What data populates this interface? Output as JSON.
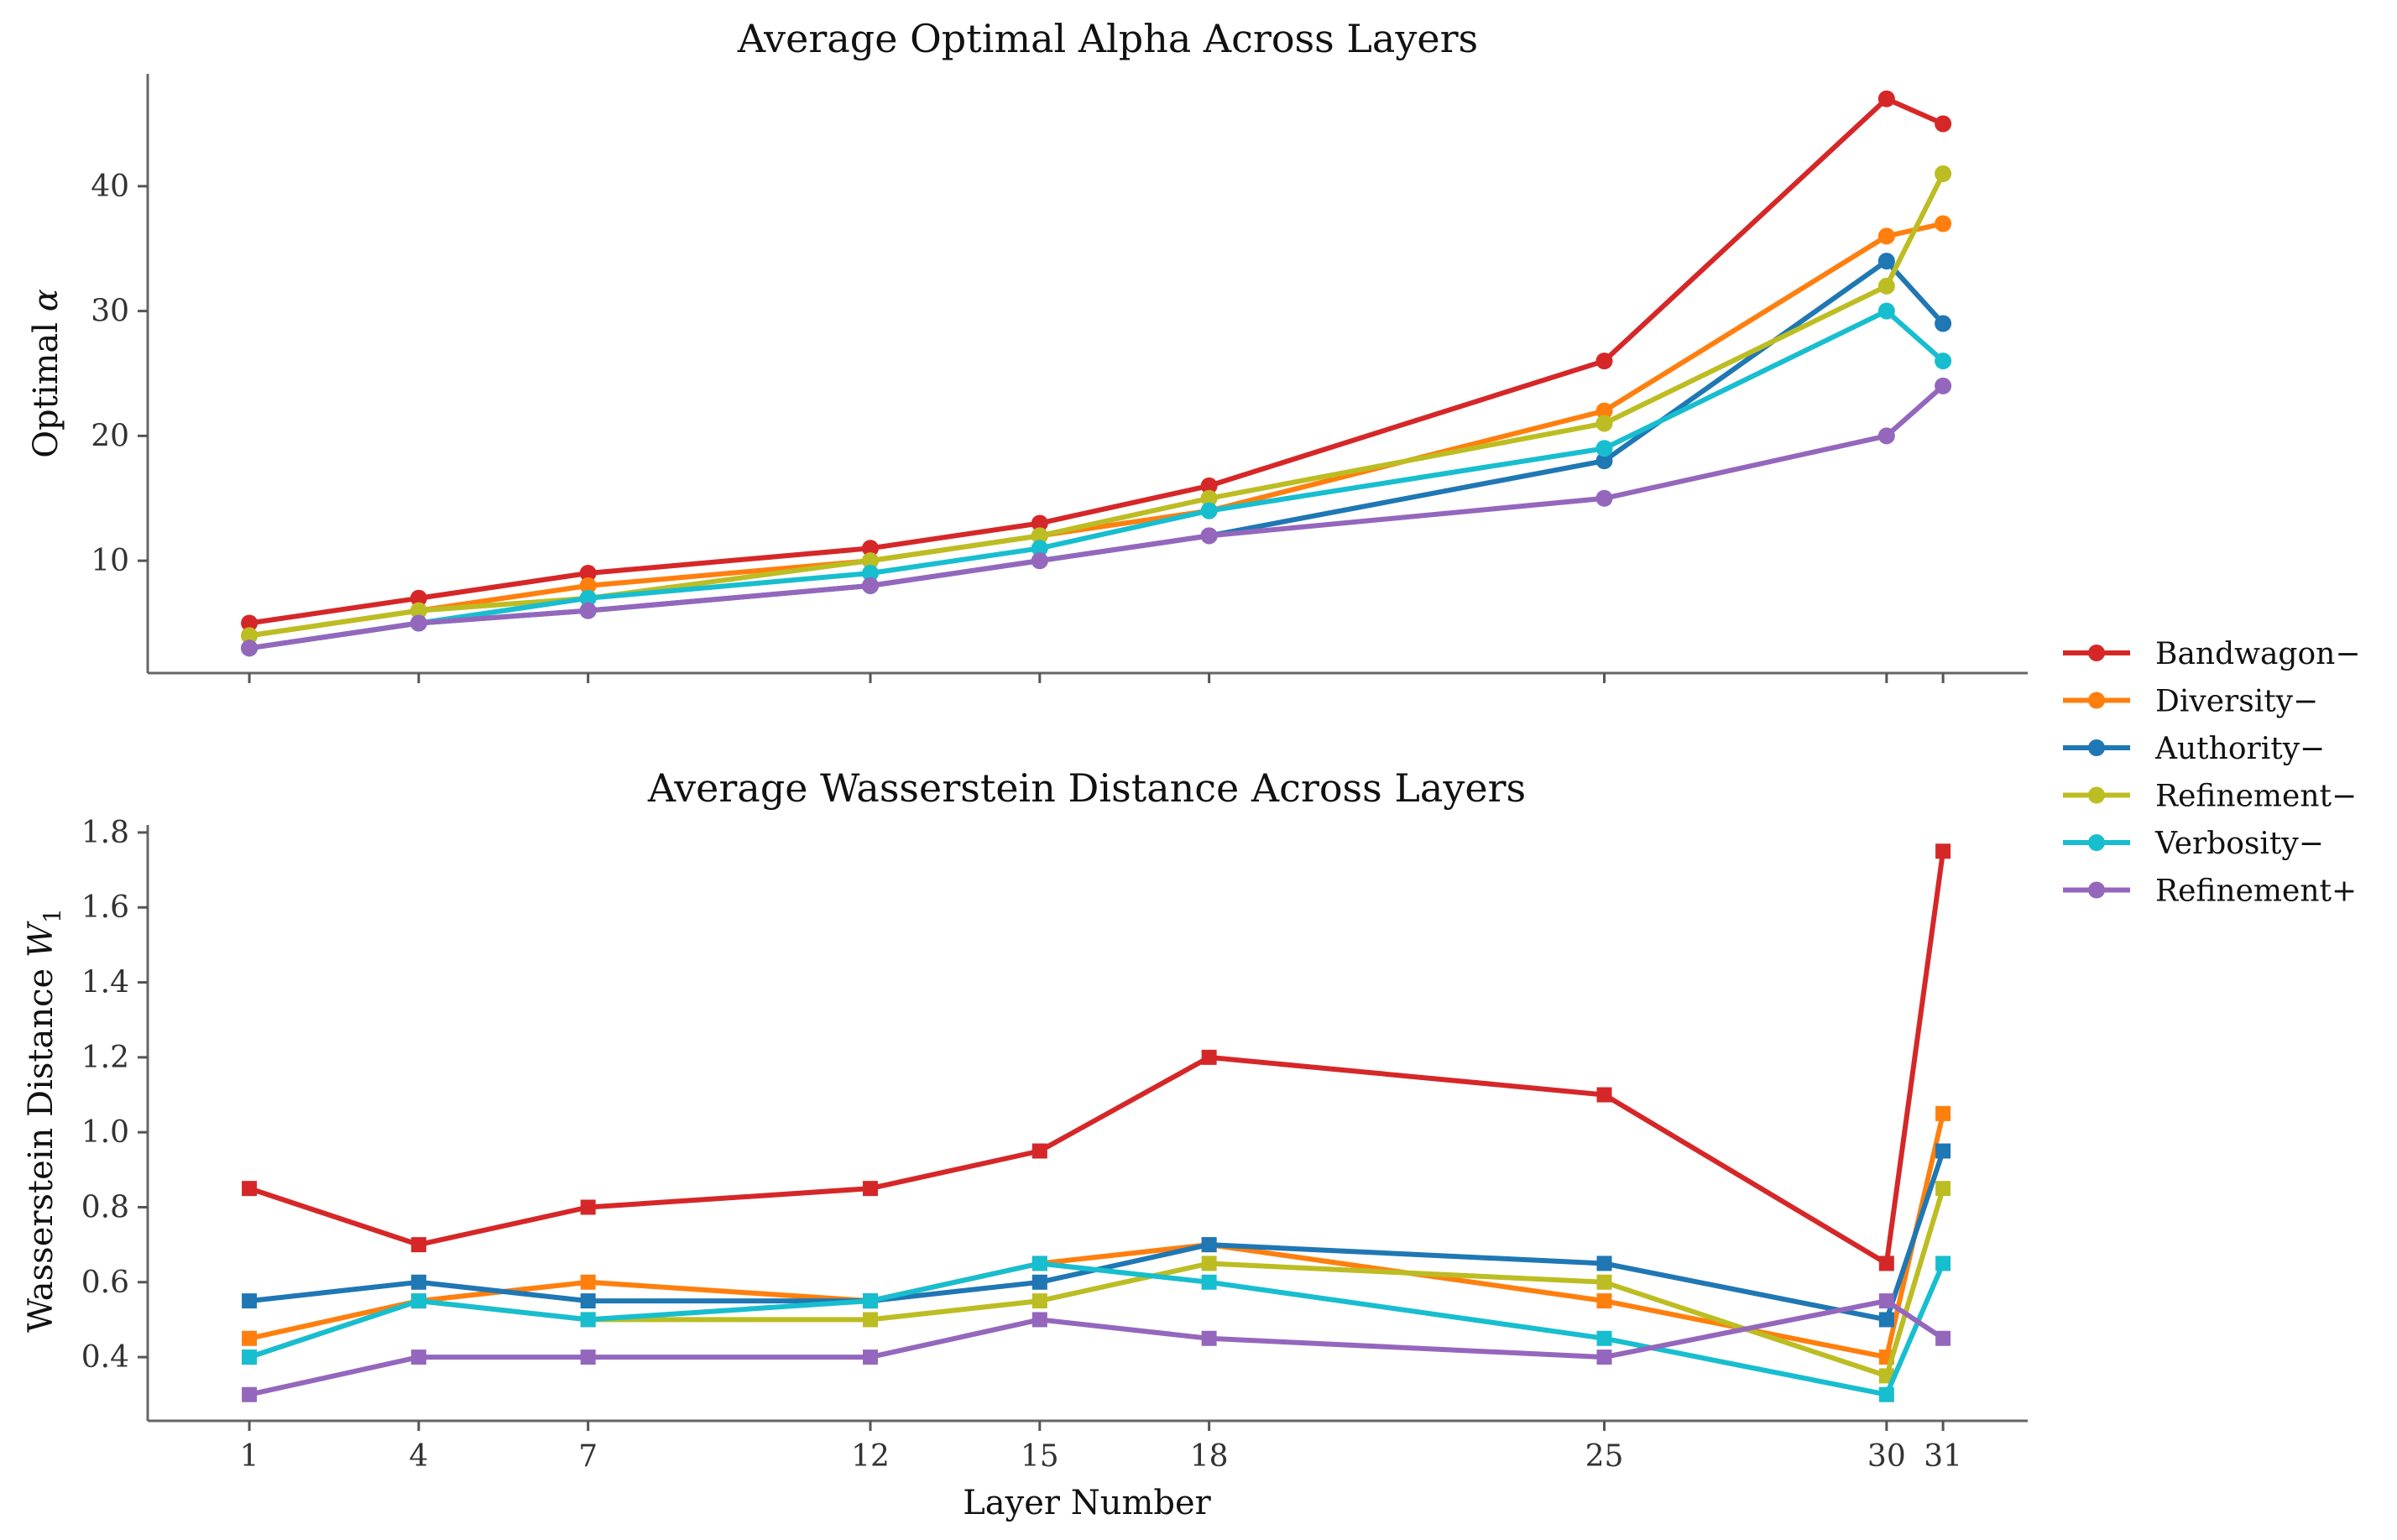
{
  "chart_data": [
    {
      "type": "line",
      "title": "Average Optimal Alpha Across Layers",
      "xlabel": "",
      "ylabel_text": "Optimal ",
      "ylabel_math": "α",
      "x": [
        1,
        4,
        7,
        12,
        15,
        18,
        25,
        30,
        31
      ],
      "xlim": [
        -0.8,
        32.5
      ],
      "ylim": [
        1,
        49
      ],
      "yticks": [
        10,
        20,
        30,
        40
      ],
      "ytick_labels": [
        "10",
        "20",
        "30",
        "40"
      ],
      "xtick_labels_visible": false,
      "marker": "circle",
      "grid": false,
      "series": [
        {
          "name": "Bandwagon−",
          "color": "#d62728",
          "values": [
            5,
            7,
            9,
            11,
            13,
            16,
            26,
            47,
            45
          ]
        },
        {
          "name": "Diversity−",
          "color": "#ff7f0e",
          "values": [
            4,
            6,
            8,
            10,
            12,
            14,
            22,
            36,
            37
          ]
        },
        {
          "name": "Authority−",
          "color": "#1f77b4",
          "values": [
            3,
            5,
            6,
            8,
            10,
            12,
            18,
            34,
            29
          ]
        },
        {
          "name": "Refinement−",
          "color": "#bcbd22",
          "values": [
            4,
            6,
            7,
            10,
            12,
            15,
            21,
            32,
            41
          ]
        },
        {
          "name": "Verbosity−",
          "color": "#17becf",
          "values": [
            3,
            5,
            7,
            9,
            11,
            14,
            19,
            30,
            26
          ]
        },
        {
          "name": "Refinement+",
          "color": "#9467bd",
          "values": [
            3,
            5,
            6,
            8,
            10,
            12,
            15,
            20,
            24
          ]
        }
      ]
    },
    {
      "type": "line",
      "title": "Average Wasserstein Distance Across Layers",
      "xlabel": "Layer Number",
      "ylabel_text": "Wasserstein Distance ",
      "ylabel_math": "W",
      "ylabel_sub": "1",
      "x": [
        1,
        4,
        7,
        12,
        15,
        18,
        25,
        30,
        31
      ],
      "xlim": [
        -0.8,
        32.5
      ],
      "ylim": [
        0.23,
        1.82
      ],
      "yticks": [
        0.4,
        0.6,
        0.8,
        1.0,
        1.2,
        1.4,
        1.6,
        1.8
      ],
      "ytick_labels": [
        "0.4",
        "0.6",
        "0.8",
        "1.0",
        "1.2",
        "1.4",
        "1.6",
        "1.8"
      ],
      "xticks": [
        1,
        4,
        7,
        12,
        15,
        18,
        25,
        30,
        31
      ],
      "xtick_labels": [
        "1",
        "4",
        "7",
        "12",
        "15",
        "18",
        "25",
        "30",
        "31"
      ],
      "marker": "square",
      "grid": false,
      "series": [
        {
          "name": "Bandwagon−",
          "color": "#d62728",
          "values": [
            0.85,
            0.7,
            0.8,
            0.85,
            0.95,
            1.2,
            1.1,
            0.65,
            1.75
          ]
        },
        {
          "name": "Diversity−",
          "color": "#ff7f0e",
          "values": [
            0.45,
            0.55,
            0.6,
            0.55,
            0.65,
            0.7,
            0.55,
            0.4,
            1.05
          ]
        },
        {
          "name": "Authority−",
          "color": "#1f77b4",
          "values": [
            0.55,
            0.6,
            0.55,
            0.55,
            0.6,
            0.7,
            0.65,
            0.5,
            0.95
          ]
        },
        {
          "name": "Refinement−",
          "color": "#bcbd22",
          "values": [
            0.4,
            0.55,
            0.5,
            0.5,
            0.55,
            0.65,
            0.6,
            0.35,
            0.85
          ]
        },
        {
          "name": "Verbosity−",
          "color": "#17becf",
          "values": [
            0.4,
            0.55,
            0.5,
            0.55,
            0.65,
            0.6,
            0.45,
            0.3,
            0.65
          ]
        },
        {
          "name": "Refinement+",
          "color": "#9467bd",
          "values": [
            0.3,
            0.4,
            0.4,
            0.4,
            0.5,
            0.45,
            0.4,
            0.55,
            0.45
          ]
        }
      ]
    }
  ],
  "legend": {
    "placement": "right",
    "entries": [
      "Bandwagon−",
      "Diversity−",
      "Authority−",
      "Refinement−",
      "Verbosity−",
      "Refinement+"
    ],
    "colors": [
      "#d62728",
      "#ff7f0e",
      "#1f77b4",
      "#bcbd22",
      "#17becf",
      "#9467bd"
    ]
  }
}
